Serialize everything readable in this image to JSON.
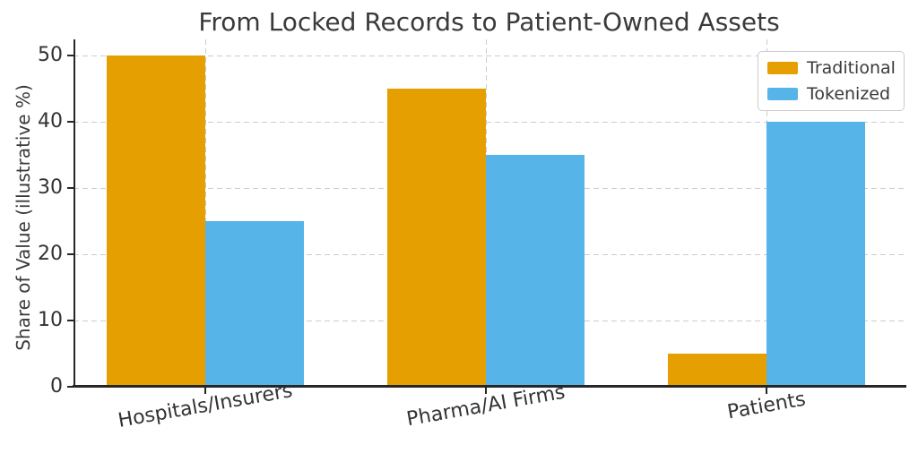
{
  "chart_data": {
    "type": "bar",
    "title": "From Locked Records to Patient-Owned Assets",
    "xlabel": "",
    "ylabel": "Share of Value (illustrative %)",
    "categories": [
      "Hospitals/Insurers",
      "Pharma/AI Firms",
      "Patients"
    ],
    "series": [
      {
        "name": "Traditional",
        "color": "#E69F00",
        "values": [
          50,
          45,
          5
        ]
      },
      {
        "name": "Tokenized",
        "color": "#56B4E9",
        "values": [
          25,
          35,
          40
        ]
      }
    ],
    "ylim": [
      0,
      52.5
    ],
    "yticks": [
      0,
      10,
      20,
      30,
      40,
      50
    ],
    "grid": true,
    "grid_style": "dashed",
    "legend_position": "upper right",
    "background_color": "#ffffff",
    "gridline_color": "#cccccc",
    "axis_color": "#262626",
    "text_color": "#3a3a3a"
  }
}
